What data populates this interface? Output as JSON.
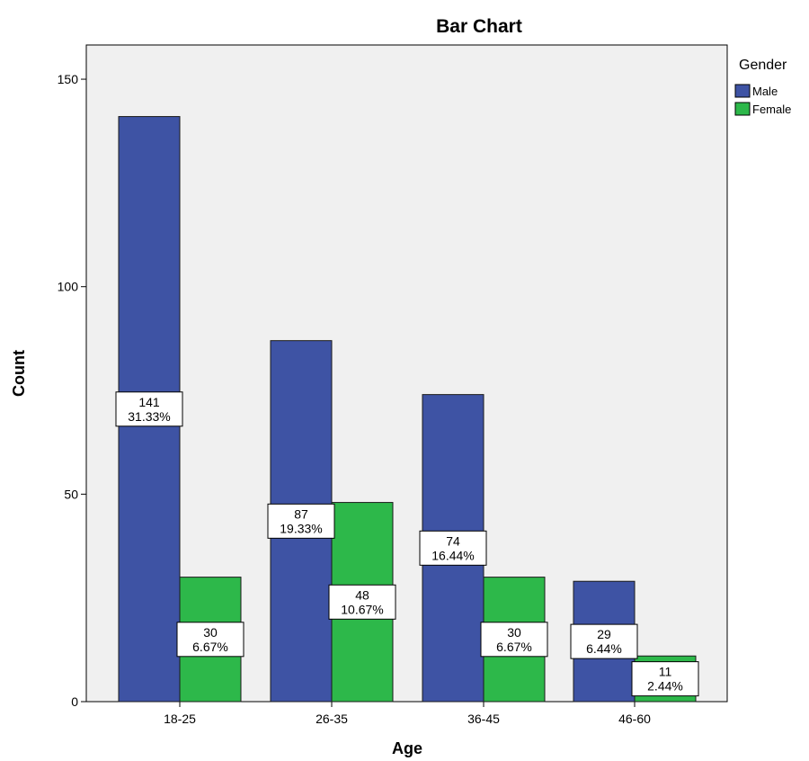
{
  "chart_data": {
    "type": "bar",
    "title": "Bar Chart",
    "xlabel": "Age",
    "ylabel": "Count",
    "categories": [
      "18-25",
      "26-35",
      "36-45",
      "46-60"
    ],
    "ylim": [
      0,
      150
    ],
    "yticks": [
      0,
      50,
      100,
      150
    ],
    "grid": false,
    "legend": {
      "title": "Gender",
      "placement": "right"
    },
    "series": [
      {
        "name": "Male",
        "color": "#3E53A4",
        "values": [
          141,
          87,
          74,
          29
        ],
        "percents": [
          "31.33%",
          "19.33%",
          "16.44%",
          "6.44%"
        ]
      },
      {
        "name": "Female",
        "color": "#2DB84A",
        "values": [
          30,
          48,
          30,
          11
        ],
        "percents": [
          "6.67%",
          "10.67%",
          "6.67%",
          "2.44%"
        ]
      }
    ],
    "colors": {
      "plot_background": "#F0F0F0"
    }
  }
}
